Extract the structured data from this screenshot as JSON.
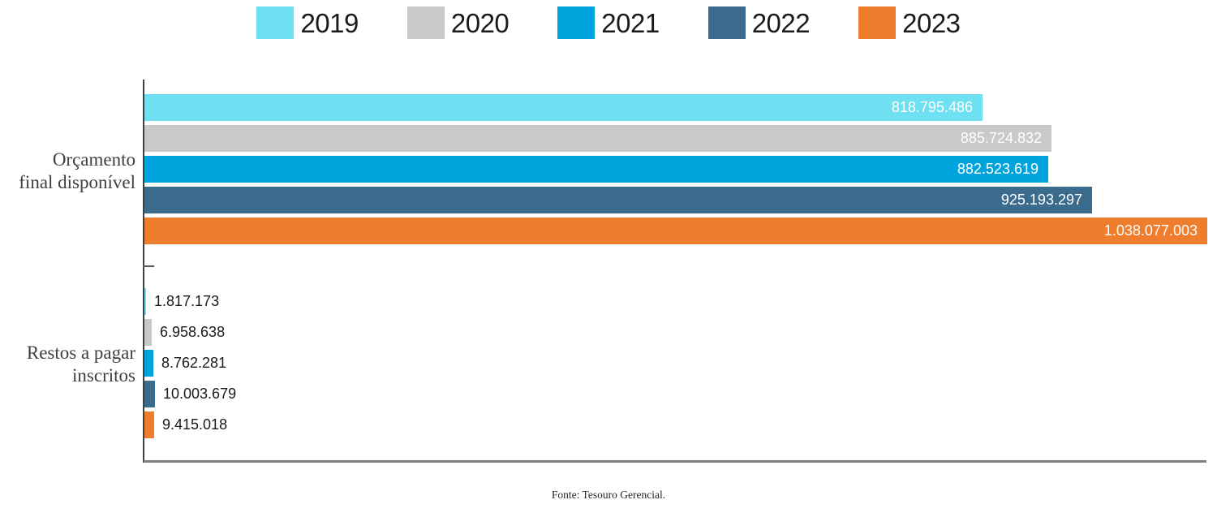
{
  "legend": {
    "items": [
      {
        "label": "2019",
        "color": "#6FDFF2"
      },
      {
        "label": "2020",
        "color": "#C9C9C9"
      },
      {
        "label": "2021",
        "color": "#00A3DC"
      },
      {
        "label": "2022",
        "color": "#3B6B8D"
      },
      {
        "label": "2023",
        "color": "#EE7D2E"
      }
    ]
  },
  "chart_data": {
    "type": "bar",
    "orientation": "horizontal",
    "categories": [
      "Orçamento final disponível",
      "Restos a pagar inscritos"
    ],
    "category_lines": [
      [
        "Orçamento",
        "final disponível"
      ],
      [
        "Restos a pagar",
        "inscritos"
      ]
    ],
    "series": [
      {
        "name": "2019",
        "color": "#6FDFF2",
        "values": [
          818795486,
          1817173
        ],
        "labels": [
          "818.795.486",
          "1.817.173"
        ]
      },
      {
        "name": "2020",
        "color": "#C9C9C9",
        "values": [
          885724832,
          6958638
        ],
        "labels": [
          "885.724.832",
          "6.958.638"
        ]
      },
      {
        "name": "2021",
        "color": "#00A3DC",
        "values": [
          882523619,
          8762281
        ],
        "labels": [
          "882.523.619",
          "8.762.281"
        ]
      },
      {
        "name": "2022",
        "color": "#3B6B8D",
        "values": [
          925193297,
          10003679
        ],
        "labels": [
          "925.193.297",
          "10.003.679"
        ]
      },
      {
        "name": "2023",
        "color": "#EE7D2E",
        "values": [
          1038077003,
          9415018
        ],
        "labels": [
          "1.038.077.003",
          "9.415.018"
        ]
      }
    ],
    "xlim": [
      0,
      1038077003
    ],
    "labels_inside_per_category": [
      true,
      false
    ],
    "legend_position": "top",
    "grid": false,
    "axis_color": "#404040",
    "value_label_inside_color": "#FFFFFF",
    "value_label_outside_color": "#1A1A1A"
  },
  "source": {
    "text": "Fonte:  Tesouro Gerencial."
  }
}
